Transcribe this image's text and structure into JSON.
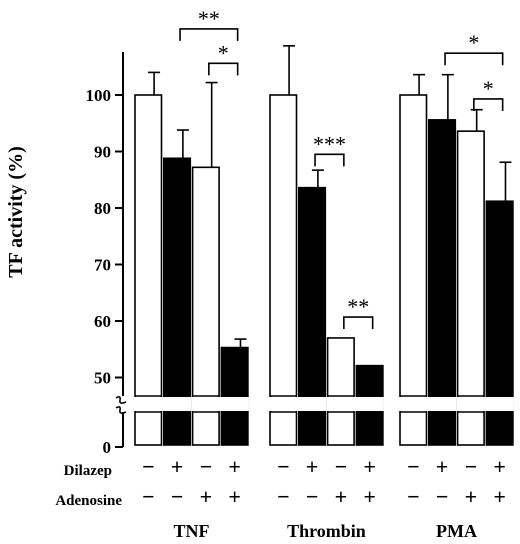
{
  "chart_data": {
    "type": "bar",
    "ylabel": "TF activity (%)",
    "yticks": [
      0,
      50,
      60,
      70,
      80,
      90,
      100
    ],
    "ylim": [
      45,
      110
    ],
    "axis_break": true,
    "groups": [
      {
        "label": "TNF",
        "bars": [
          {
            "dilazep": "−",
            "adenosine": "−",
            "value": 100,
            "error": 4,
            "fill": "white"
          },
          {
            "dilazep": "+",
            "adenosine": "−",
            "value": 88.8,
            "error": 5,
            "fill": "black"
          },
          {
            "dilazep": "−",
            "adenosine": "+",
            "value": 87.2,
            "error": 15,
            "fill": "white"
          },
          {
            "dilazep": "+",
            "adenosine": "+",
            "value": 55.3,
            "error": 1.5,
            "fill": "black"
          }
        ],
        "significance": [
          {
            "from": 1,
            "to": 3,
            "label": "**",
            "y": 111.7
          },
          {
            "from": 2,
            "to": 3,
            "label": "*",
            "y": 105.6
          }
        ]
      },
      {
        "label": "Thrombin",
        "bars": [
          {
            "dilazep": "−",
            "adenosine": "−",
            "value": 100,
            "error": 8.7,
            "fill": "white"
          },
          {
            "dilazep": "+",
            "adenosine": "−",
            "value": 83.6,
            "error": 3.1,
            "fill": "black"
          },
          {
            "dilazep": "−",
            "adenosine": "+",
            "value": 57,
            "error": 0,
            "fill": "white"
          },
          {
            "dilazep": "+",
            "adenosine": "+",
            "value": 52.1,
            "error": 0,
            "fill": "black"
          }
        ],
        "significance": [
          {
            "from": 1,
            "to": 2,
            "label": "***",
            "y": 89.5
          },
          {
            "from": 2,
            "to": 3,
            "label": "**",
            "y": 60.7
          }
        ]
      },
      {
        "label": "PMA",
        "bars": [
          {
            "dilazep": "−",
            "adenosine": "−",
            "value": 100,
            "error": 3.6,
            "fill": "white"
          },
          {
            "dilazep": "+",
            "adenosine": "−",
            "value": 95.6,
            "error": 8,
            "fill": "black"
          },
          {
            "dilazep": "−",
            "adenosine": "+",
            "value": 93.6,
            "error": 3.8,
            "fill": "white"
          },
          {
            "dilazep": "+",
            "adenosine": "+",
            "value": 81.2,
            "error": 6.9,
            "fill": "black"
          }
        ],
        "significance": [
          {
            "from": 1,
            "to": 3,
            "label": "*",
            "y": 107.4
          },
          {
            "from": 2,
            "to": 3,
            "label": "*",
            "y": 99.3
          }
        ]
      }
    ],
    "row_labels": {
      "dilazep": "Dilazep",
      "adenosine": "Adenosine"
    }
  }
}
